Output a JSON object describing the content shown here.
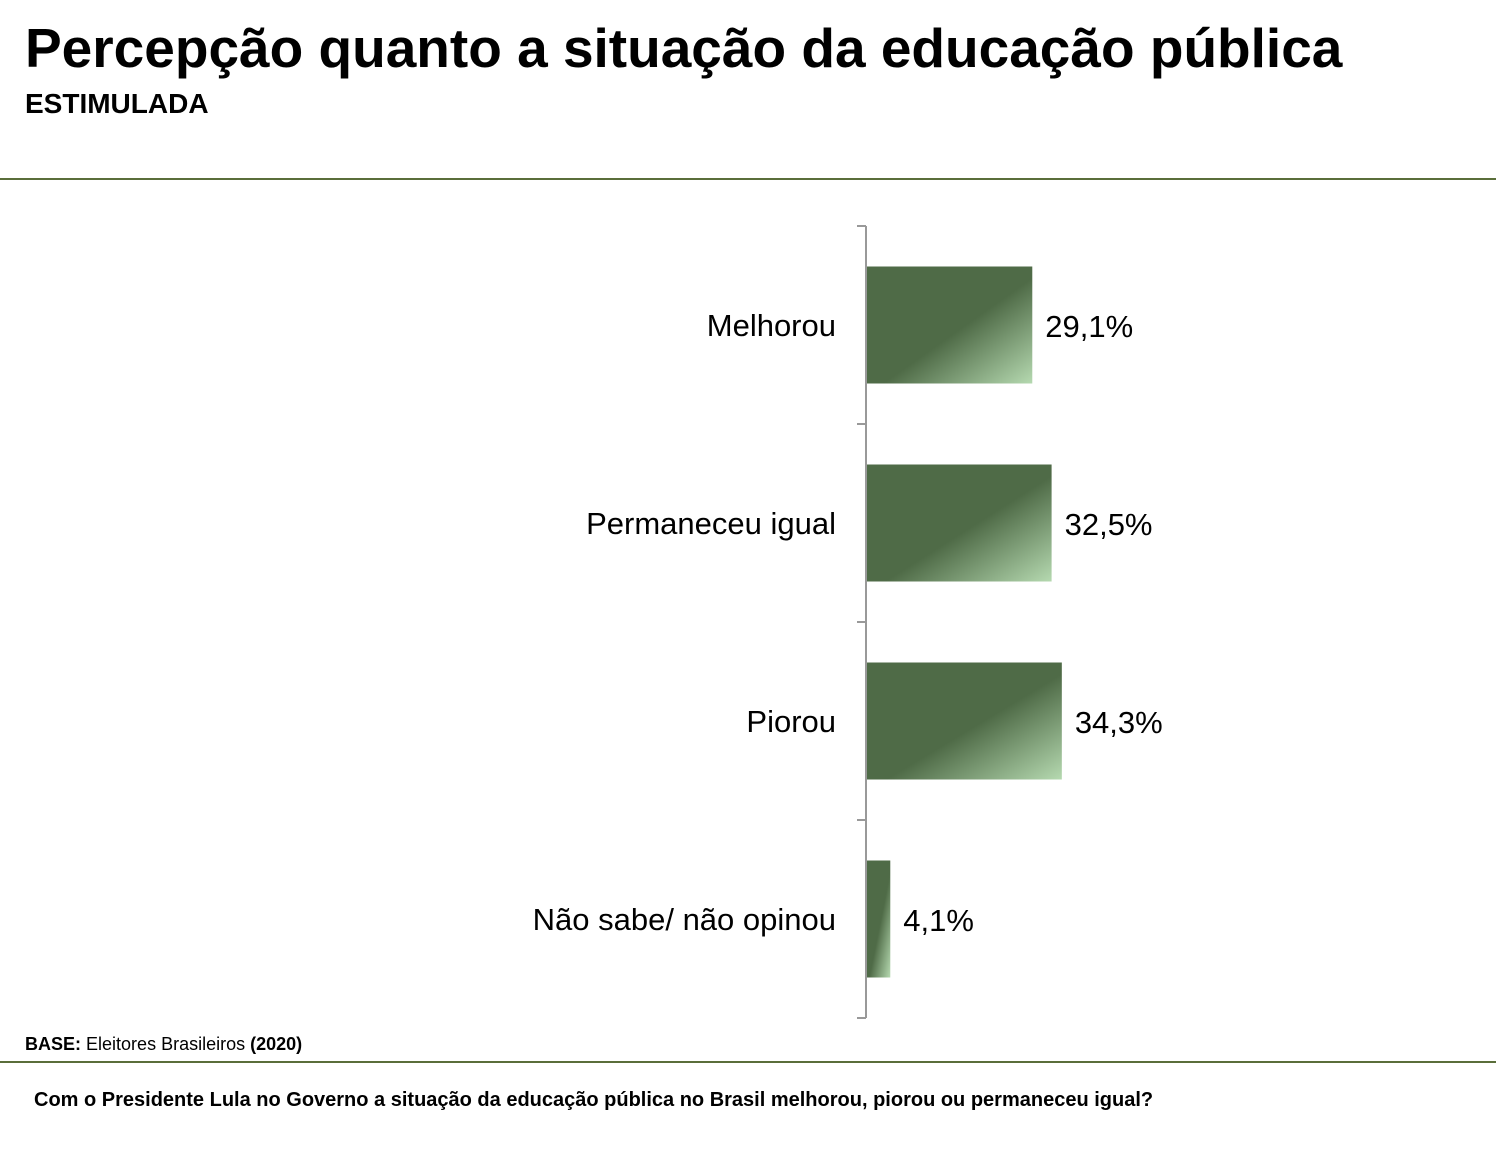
{
  "header": {
    "title": "Percepção quanto a situação da educação pública",
    "subtitle": "ESTIMULADA"
  },
  "footer": {
    "base_label": "BASE:",
    "base_text": "Eleitores Brasileiros",
    "base_year": "(2020)",
    "question": "Com o Presidente Lula no Governo a situação da educação pública no Brasil melhorou, piorou ou permaneceu igual?"
  },
  "colors": {
    "accent_rule": "#5a6e3a",
    "bar_dark": "#4f6b47",
    "bar_light": "#b5d9b0",
    "axis": "#999999"
  },
  "chart_data": {
    "type": "bar",
    "orientation": "horizontal",
    "categories": [
      "Melhorou",
      "Permaneceu igual",
      "Piorou",
      "Não sabe/ não opinou"
    ],
    "values": [
      29.1,
      32.5,
      34.3,
      4.1
    ],
    "value_labels": [
      "29,1%",
      "32,5%",
      "34,3%",
      "4,1%"
    ],
    "unit": "%",
    "title": "",
    "xlabel": "",
    "ylabel": "",
    "xlim": [
      0,
      100
    ],
    "grid": false,
    "legend": "none"
  }
}
